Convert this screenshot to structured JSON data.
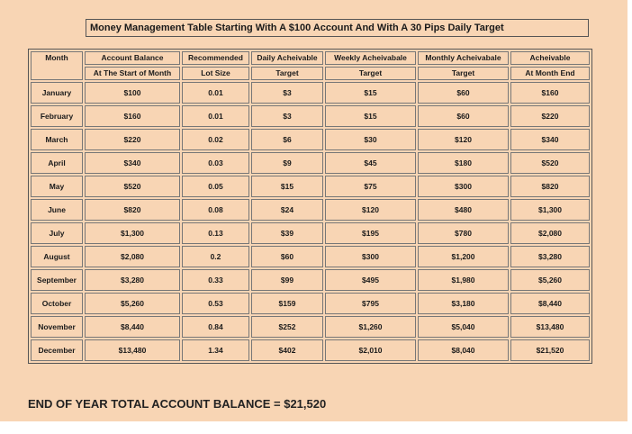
{
  "title": "Money Management Table Starting With A $100 Account And With A 30 Pips Daily Target",
  "headers": {
    "month": "Month",
    "balance_1": "Account Balance",
    "balance_2": "At The Start of Month",
    "lot_1": "Recommended",
    "lot_2": "Lot Size",
    "daily_1": "Daily Acheivable",
    "daily_2": "Target",
    "weekly_1": "Weekly Acheivabale",
    "weekly_2": "Target",
    "monthly_1": "Monthly Acheivabale",
    "monthly_2": "Target",
    "end_1": "Acheivable",
    "end_2": "At Month End"
  },
  "rows": [
    {
      "month": "January",
      "balance": "$100",
      "lot": "0.01",
      "daily": "$3",
      "weekly": "$15",
      "monthly": "$60",
      "end": "$160"
    },
    {
      "month": "February",
      "balance": "$160",
      "lot": "0.01",
      "daily": "$3",
      "weekly": "$15",
      "monthly": "$60",
      "end": "$220"
    },
    {
      "month": "March",
      "balance": "$220",
      "lot": "0.02",
      "daily": "$6",
      "weekly": "$30",
      "monthly": "$120",
      "end": "$340"
    },
    {
      "month": "April",
      "balance": "$340",
      "lot": "0.03",
      "daily": "$9",
      "weekly": "$45",
      "monthly": "$180",
      "end": "$520"
    },
    {
      "month": "May",
      "balance": "$520",
      "lot": "0.05",
      "daily": "$15",
      "weekly": "$75",
      "monthly": "$300",
      "end": "$820"
    },
    {
      "month": "June",
      "balance": "$820",
      "lot": "0.08",
      "daily": "$24",
      "weekly": "$120",
      "monthly": "$480",
      "end": "$1,300"
    },
    {
      "month": "July",
      "balance": "$1,300",
      "lot": "0.13",
      "daily": "$39",
      "weekly": "$195",
      "monthly": "$780",
      "end": "$2,080"
    },
    {
      "month": "August",
      "balance": "$2,080",
      "lot": "0.2",
      "daily": "$60",
      "weekly": "$300",
      "monthly": "$1,200",
      "end": "$3,280"
    },
    {
      "month": "September",
      "balance": "$3,280",
      "lot": "0.33",
      "daily": "$99",
      "weekly": "$495",
      "monthly": "$1,980",
      "end": "$5,260"
    },
    {
      "month": "October",
      "balance": "$5,260",
      "lot": "0.53",
      "daily": "$159",
      "weekly": "$795",
      "monthly": "$3,180",
      "end": "$8,440"
    },
    {
      "month": "November",
      "balance": "$8,440",
      "lot": "0.84",
      "daily": "$252",
      "weekly": "$1,260",
      "monthly": "$5,040",
      "end": "$13,480"
    },
    {
      "month": "December",
      "balance": "$13,480",
      "lot": "1.34",
      "daily": "$402",
      "weekly": "$2,010",
      "monthly": "$8,040",
      "end": "$21,520"
    }
  ],
  "footer": "END OF YEAR TOTAL ACCOUNT BALANCE = $21,520",
  "colors": {
    "background": "#f8d5b4",
    "border": "#555555",
    "text": "#1a1a1a"
  }
}
